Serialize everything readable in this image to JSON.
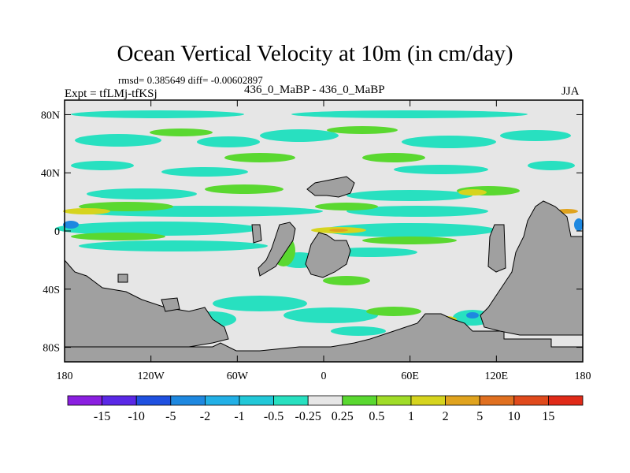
{
  "chart_data": {
    "type": "heatmap",
    "title": "Ocean Vertical Velocity at 10m (in cm/day)",
    "stats_line": "rmsd= 0.385649 diff= -0.00602897",
    "experiment": "Expt = tfLMj-tfKSj",
    "comparison": "436_0_MaBP - 436_0_MaBP",
    "season": "JJA",
    "x_ticks": [
      "180",
      "120W",
      "60W",
      "0",
      "60E",
      "120E",
      "180"
    ],
    "x_tick_values": [
      -180,
      -120,
      -60,
      0,
      60,
      120,
      180
    ],
    "y_ticks": [
      "80N",
      "40N",
      "0",
      "40S",
      "80S"
    ],
    "y_tick_values": [
      80,
      40,
      0,
      -40,
      -80
    ],
    "xlim": [
      -180,
      180
    ],
    "ylim": [
      -90,
      90
    ],
    "colorbar": {
      "labels": [
        "-15",
        "-10",
        "-5",
        "-2",
        "-1",
        "-0.5",
        "-0.25",
        "0.25",
        "0.5",
        "1",
        "2",
        "5",
        "10",
        "15"
      ],
      "colors": [
        "#8a1fe0",
        "#5a28e6",
        "#1f50e0",
        "#1e88e0",
        "#22b0e6",
        "#22c8d8",
        "#28e0c0",
        "#e6e6e6",
        "#5ad830",
        "#a0dc28",
        "#d6d41e",
        "#e0a31e",
        "#e07020",
        "#e04a1c",
        "#e02a18"
      ]
    },
    "land_color": "#a0a0a0",
    "ocean_neutral_color": "#e6e6e6"
  }
}
